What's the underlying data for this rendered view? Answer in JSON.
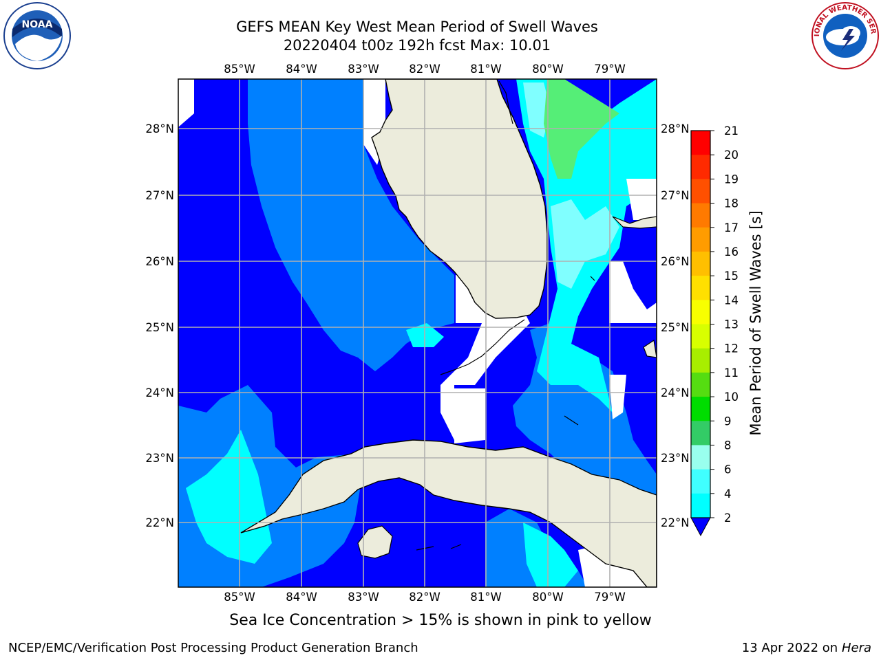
{
  "title": {
    "line1": "GEFS MEAN Key West Mean Period of Swell Waves",
    "line2": "20220404 t00z 192h fcst   Max: 10.01"
  },
  "map": {
    "lon_labels": [
      "85°W",
      "84°W",
      "83°W",
      "82°W",
      "81°W",
      "80°W",
      "79°W"
    ],
    "lat_labels": [
      "28°N",
      "27°N",
      "26°N",
      "25°N",
      "24°N",
      "23°N",
      "22°N"
    ],
    "colors": {
      "land": "#ececdc",
      "c2": "#0000ff",
      "c3": "#0080ff",
      "c4": "#00ffff",
      "c6": "#40ffff",
      "c8": "#80ffff",
      "c9": "#55ee77",
      "grid": "#b0b0b0"
    }
  },
  "colorbar": {
    "label": "Mean Period of Swell Waves [s]",
    "ticks": [
      "21",
      "20",
      "19",
      "18",
      "17",
      "16",
      "15",
      "14",
      "13",
      "12",
      "11",
      "10",
      "9",
      "8",
      "6",
      "4",
      "2"
    ],
    "colors": [
      "#ff0000",
      "#ff2a00",
      "#ff5000",
      "#ff7a00",
      "#ff9c00",
      "#ffbf00",
      "#ffe000",
      "#f8ff00",
      "#e0ff00",
      "#c0f000",
      "#99e600",
      "#55dd11",
      "#00dd00",
      "#33cc66",
      "#55ee88",
      "#99ffee",
      "#40ffff",
      "#00ffff",
      "#0080ff"
    ],
    "under_color": "#0000ff"
  },
  "note": "Sea Ice Concentration > 15% is shown in pink to yellow",
  "footer": {
    "left": "NCEP/EMC/Verification Post Processing Product Generation Branch",
    "right_prefix": "13 Apr 2022 on ",
    "right_host": "Hera"
  },
  "logos": {
    "left_icon": "noaa-logo-icon",
    "left_text": "NOAA",
    "right_icon": "nws-logo-icon",
    "right_text": "NATIONAL WEATHER SERVICE"
  }
}
